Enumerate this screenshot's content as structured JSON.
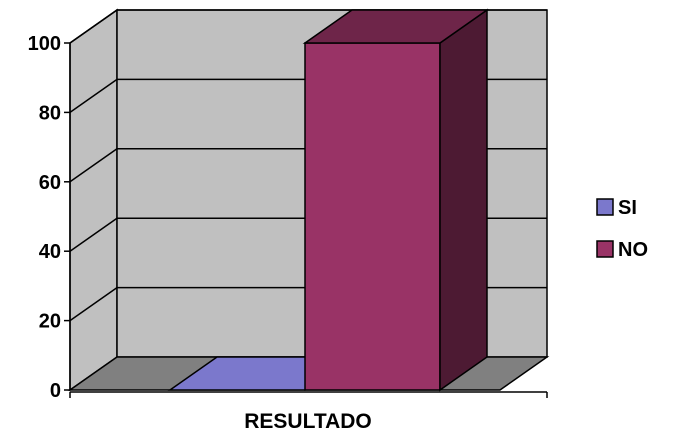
{
  "chart_data": {
    "type": "bar",
    "style": "3d-column",
    "categories": [
      "RESULTADO"
    ],
    "series": [
      {
        "name": "SI",
        "values": [
          0
        ],
        "color": "#7b78cc"
      },
      {
        "name": "NO",
        "values": [
          100
        ],
        "color": "#993366"
      }
    ],
    "xlabel": "RESULTADO",
    "ylabel": "",
    "ylim": [
      0,
      100
    ],
    "yticks": [
      0,
      20,
      40,
      60,
      80,
      100
    ],
    "grid": true,
    "legend": "right",
    "wall_color": "#c0c0c0",
    "floor_color": "#808080"
  }
}
